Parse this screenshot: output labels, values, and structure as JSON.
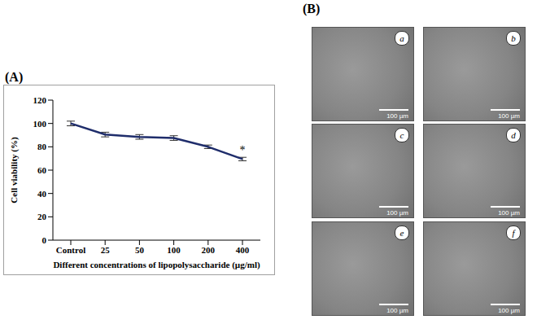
{
  "chart_data": {
    "type": "line",
    "panel_label": "(A)",
    "x_label": "Different concentrations of lipopolysaccharide (µg/ml)",
    "y_label": "Cell viability (%)",
    "categories": [
      "Control",
      "25",
      "50",
      "100",
      "200",
      "400"
    ],
    "values": [
      100,
      90.5,
      88.5,
      87.5,
      80,
      69.5
    ],
    "errors": [
      2,
      2,
      2,
      2,
      1.5,
      1.5
    ],
    "color": "#1f2d6b",
    "marker": "none",
    "ylim": [
      0,
      120
    ],
    "yticks": [
      0,
      20,
      40,
      60,
      80,
      100,
      120
    ],
    "grid": false,
    "annotations": [
      {
        "x": "400",
        "text": "*"
      }
    ]
  },
  "images": {
    "panel_label": "(B)",
    "tiles": [
      "a",
      "b",
      "c",
      "d",
      "e",
      "f"
    ],
    "scale_bar": "100 µm"
  }
}
